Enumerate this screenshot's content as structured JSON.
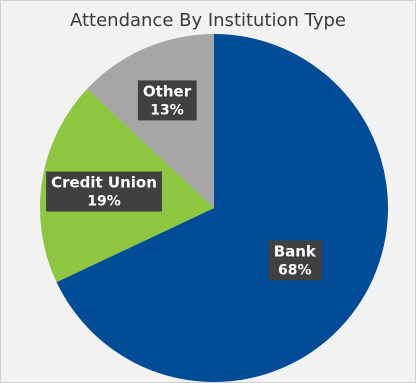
{
  "chart_data": {
    "type": "pie",
    "title": "Attendance By Institution Type",
    "slices": [
      {
        "label": "Bank",
        "value": 68,
        "value_label": "68%",
        "color": "#004c97"
      },
      {
        "label": "Credit Union",
        "value": 19,
        "value_label": "19%",
        "color": "#8dc63f"
      },
      {
        "label": "Other",
        "value": 13,
        "value_label": "13%",
        "color": "#a6a6a6"
      }
    ],
    "start_angle_deg": 0,
    "direction": "clockwise",
    "data_label_style": "dark-box",
    "data_label_bg": "#404040",
    "background": "#f2f2f2",
    "legend": "none"
  }
}
